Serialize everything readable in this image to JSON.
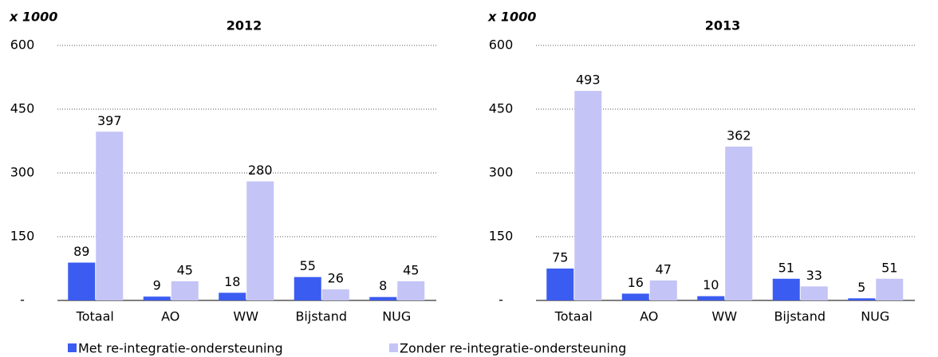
{
  "chart_data": [
    {
      "type": "bar",
      "title": "2012",
      "unit_label": "x 1000",
      "categories": [
        "Totaal",
        "AO",
        "WW",
        "Bijstand",
        "NUG"
      ],
      "series": [
        {
          "name": "Met re-integratie-ondersteuning",
          "color": "#3b5cf0",
          "values": [
            89,
            9,
            18,
            55,
            8
          ]
        },
        {
          "name": "Zonder re-integratie-ondersteuning",
          "color": "#c4c4f6",
          "values": [
            397,
            45,
            280,
            26,
            45
          ]
        }
      ],
      "ylim": [
        0,
        600
      ],
      "yticks": [
        {
          "value": 0,
          "label": "-"
        },
        150,
        300,
        450,
        600
      ],
      "grid": true
    },
    {
      "type": "bar",
      "title": "2013",
      "unit_label": "x 1000",
      "categories": [
        "Totaal",
        "AO",
        "WW",
        "Bijstand",
        "NUG"
      ],
      "series": [
        {
          "color": "#3b5cf0",
          "values": [
            75,
            16,
            10,
            51,
            5
          ]
        },
        {
          "color": "#c4c4f6",
          "values": [
            493,
            47,
            362,
            33,
            51
          ]
        }
      ],
      "ylim": [
        0,
        600
      ],
      "yticks": [
        {
          "value": 0,
          "label": "-"
        },
        150,
        300,
        450,
        600
      ],
      "grid": true
    }
  ]
}
